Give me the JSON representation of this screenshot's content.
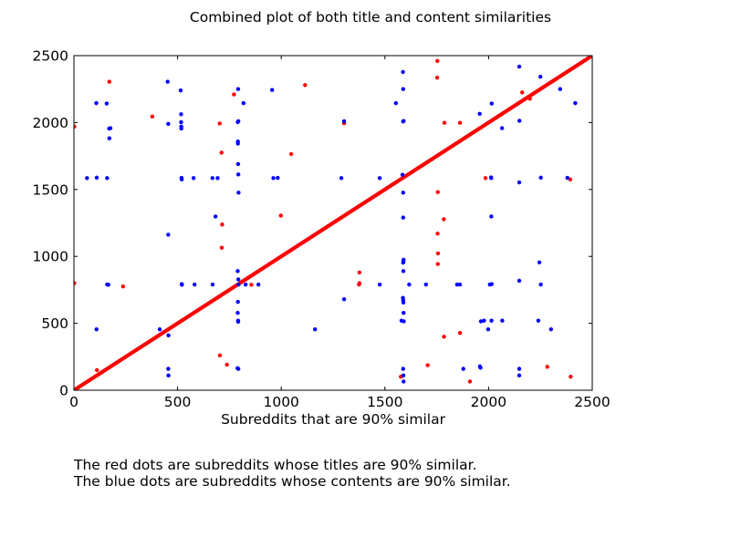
{
  "chart_data": {
    "type": "scatter",
    "title": "Combined plot of both title and content similarities",
    "xlabel": "Subreddits that are 90% similar",
    "ylabel": "",
    "xlim": [
      0,
      2500
    ],
    "ylim": [
      0,
      2500
    ],
    "x_ticks": [
      0,
      500,
      1000,
      1500,
      2000,
      2500
    ],
    "y_ticks": [
      0,
      500,
      1000,
      1500,
      2000,
      2500
    ],
    "grid": false,
    "series": [
      {
        "color": "#ff0000",
        "diagonal": {
          "from": 0,
          "to": 2500,
          "note": "dense line of points where x = y"
        },
        "points": [
          [
            2,
            1970
          ],
          [
            2,
            800
          ],
          [
            111,
            150
          ],
          [
            171,
            2305
          ],
          [
            237,
            775
          ],
          [
            378,
            2045
          ],
          [
            703,
            1993
          ],
          [
            704,
            260
          ],
          [
            712,
            1775
          ],
          [
            713,
            1065
          ],
          [
            715,
            1238
          ],
          [
            738,
            191
          ],
          [
            772,
            2210
          ],
          [
            856,
            788
          ],
          [
            998,
            1305
          ],
          [
            1048,
            1765
          ],
          [
            1115,
            2280
          ],
          [
            1303,
            1995
          ],
          [
            1377,
            880
          ],
          [
            1377,
            800
          ],
          [
            1375,
            790
          ],
          [
            1577,
            101
          ],
          [
            1706,
            187
          ],
          [
            1753,
            2460
          ],
          [
            1752,
            2335
          ],
          [
            1755,
            1480
          ],
          [
            1754,
            1170
          ],
          [
            1756,
            1022
          ],
          [
            1755,
            943
          ],
          [
            1784,
            1278
          ],
          [
            1785,
            400
          ],
          [
            1787,
            1998
          ],
          [
            1862,
            1998
          ],
          [
            1862,
            428
          ],
          [
            1910,
            65
          ],
          [
            1985,
            1585
          ],
          [
            2162,
            2225
          ],
          [
            2199,
            2178
          ],
          [
            2283,
            175
          ],
          [
            2394,
            1575
          ],
          [
            2396,
            101
          ]
        ]
      },
      {
        "color": "#0000ff",
        "points": [
          [
            63,
            1585
          ],
          [
            108,
            2145
          ],
          [
            110,
            1588
          ],
          [
            109,
            455
          ],
          [
            158,
            2142
          ],
          [
            160,
            1585
          ],
          [
            160,
            790
          ],
          [
            166,
            788
          ],
          [
            170,
            1955
          ],
          [
            171,
            1882
          ],
          [
            176,
            1958
          ],
          [
            414,
            455
          ],
          [
            452,
            2305
          ],
          [
            455,
            1990
          ],
          [
            455,
            1162
          ],
          [
            456,
            410
          ],
          [
            455,
            160
          ],
          [
            456,
            110
          ],
          [
            515,
            2240
          ],
          [
            517,
            2062
          ],
          [
            517,
            2003
          ],
          [
            518,
            1970
          ],
          [
            518,
            1955
          ],
          [
            519,
            1587
          ],
          [
            520,
            1575
          ],
          [
            520,
            793
          ],
          [
            521,
            788
          ],
          [
            577,
            1585
          ],
          [
            582,
            790
          ],
          [
            668,
            1585
          ],
          [
            669,
            790
          ],
          [
            683,
            1298
          ],
          [
            693,
            1585
          ],
          [
            792,
            2250
          ],
          [
            790,
            2003
          ],
          [
            793,
            2010
          ],
          [
            791,
            1858
          ],
          [
            791,
            1843
          ],
          [
            792,
            1690
          ],
          [
            793,
            1612
          ],
          [
            794,
            1476
          ],
          [
            790,
            890
          ],
          [
            793,
            828
          ],
          [
            794,
            790
          ],
          [
            791,
            660
          ],
          [
            790,
            578
          ],
          [
            792,
            520
          ],
          [
            792,
            512
          ],
          [
            789,
            165
          ],
          [
            793,
            160
          ],
          [
            818,
            2145
          ],
          [
            828,
            790
          ],
          [
            890,
            790
          ],
          [
            956,
            2243
          ],
          [
            962,
            1585
          ],
          [
            983,
            1587
          ],
          [
            1163,
            455
          ],
          [
            1290,
            1585
          ],
          [
            1303,
            2010
          ],
          [
            1303,
            680
          ],
          [
            1475,
            1585
          ],
          [
            1475,
            790
          ],
          [
            1553,
            2145
          ],
          [
            1580,
            520
          ],
          [
            1585,
            1610
          ],
          [
            1587,
            2378
          ],
          [
            1588,
            2250
          ],
          [
            1590,
            2012
          ],
          [
            1588,
            2008
          ],
          [
            1588,
            1476
          ],
          [
            1588,
            1290
          ],
          [
            1590,
            975
          ],
          [
            1589,
            962
          ],
          [
            1588,
            953
          ],
          [
            1589,
            890
          ],
          [
            1587,
            690
          ],
          [
            1588,
            672
          ],
          [
            1589,
            655
          ],
          [
            1590,
            578
          ],
          [
            1591,
            515
          ],
          [
            1588,
            160
          ],
          [
            1589,
            110
          ],
          [
            1590,
            65
          ],
          [
            1617,
            790
          ],
          [
            1698,
            790
          ],
          [
            1848,
            790
          ],
          [
            1862,
            790
          ],
          [
            1878,
            160
          ],
          [
            1957,
            2065
          ],
          [
            1958,
            178
          ],
          [
            1961,
            168
          ],
          [
            1963,
            515
          ],
          [
            1978,
            520
          ],
          [
            1998,
            455
          ],
          [
            2006,
            790
          ],
          [
            2012,
            1590
          ],
          [
            2013,
            1585
          ],
          [
            2013,
            1298
          ],
          [
            2014,
            520
          ],
          [
            2015,
            793
          ],
          [
            2015,
            2142
          ],
          [
            2065,
            1958
          ],
          [
            2066,
            520
          ],
          [
            2148,
            2418
          ],
          [
            2149,
            2013
          ],
          [
            2148,
            1553
          ],
          [
            2148,
            818
          ],
          [
            2148,
            160
          ],
          [
            2148,
            110
          ],
          [
            2240,
            520
          ],
          [
            2245,
            955
          ],
          [
            2250,
            2342
          ],
          [
            2252,
            1588
          ],
          [
            2252,
            790
          ],
          [
            2301,
            455
          ],
          [
            2345,
            2250
          ],
          [
            2380,
            1587
          ],
          [
            2418,
            2145
          ]
        ]
      }
    ]
  },
  "captions": {
    "red": "The red dots are subreddits whose titles are 90% similar.",
    "blue": "The blue dots are subreddits whose contents are 90% similar."
  }
}
